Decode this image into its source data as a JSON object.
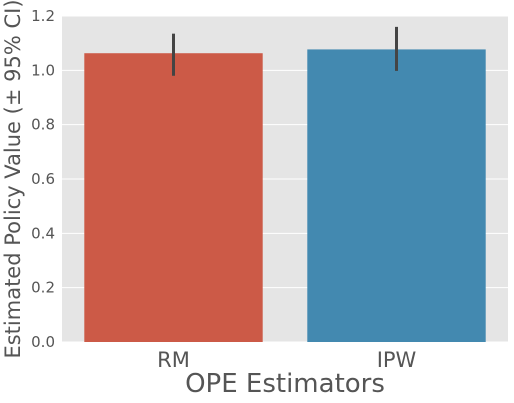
{
  "chart_data": {
    "type": "bar",
    "categories": [
      "RM",
      "IPW"
    ],
    "values": [
      1.063,
      1.077
    ],
    "error_bars": [
      {
        "low": 0.98,
        "high": 1.135
      },
      {
        "low": 0.998,
        "high": 1.16
      }
    ],
    "colors": [
      "#cc5a47",
      "#4389b0"
    ],
    "xlabel": "OPE Estimators",
    "ylabel": "Estimated Policy Value (± 95% CI)",
    "ylim": [
      0,
      1.2
    ],
    "yticks": [
      "0.0",
      "0.2",
      "0.4",
      "0.6",
      "0.8",
      "1.0",
      "1.2"
    ],
    "grid": true,
    "background": "#e5e5e5",
    "gridColor": "#ffffff",
    "errorColor": "#444444"
  }
}
